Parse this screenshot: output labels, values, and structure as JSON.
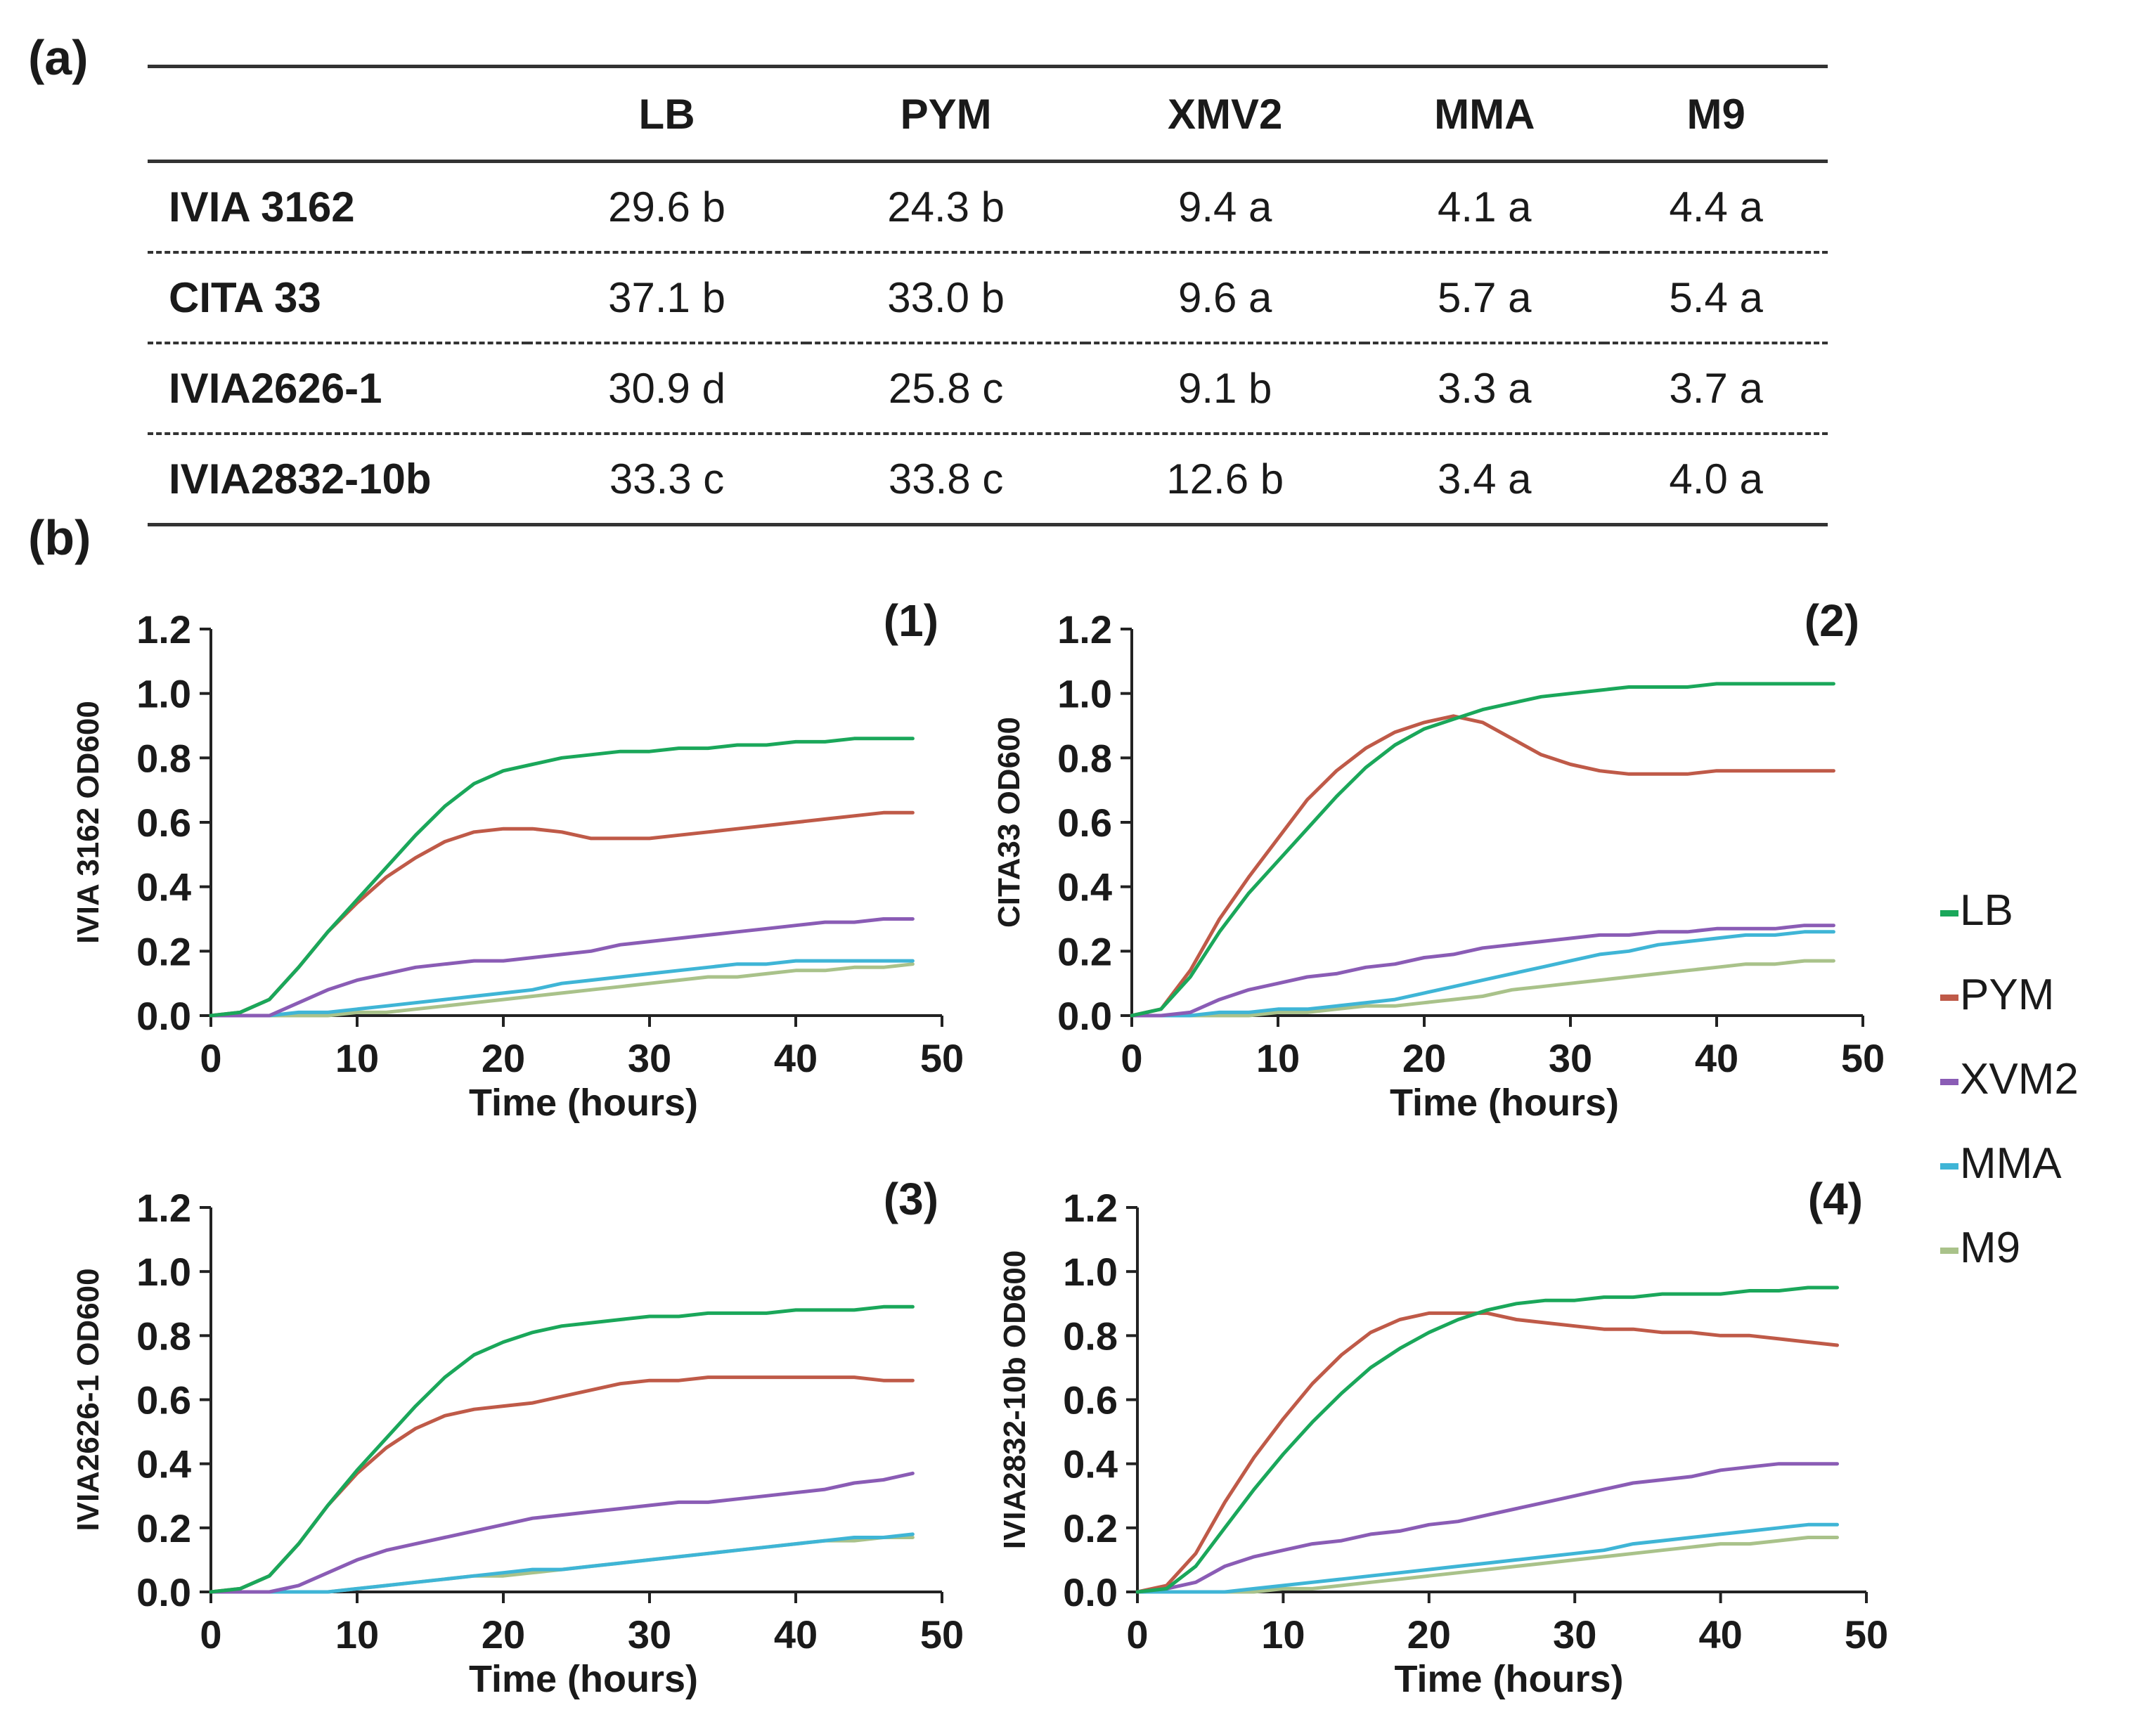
{
  "panel_a_label": "(a)",
  "panel_b_label": "(b)",
  "table": {
    "columns": [
      "LB",
      "PYM",
      "XMV2",
      "MMA",
      "M9"
    ],
    "rows": [
      {
        "strain": "IVIA 3162",
        "values": [
          "29.6 b",
          "24.3 b",
          "9.4 a",
          "4.1 a",
          "4.4 a"
        ]
      },
      {
        "strain": "CITA 33",
        "values": [
          "37.1 b",
          "33.0 b",
          "9.6 a",
          "5.7 a",
          "5.4 a"
        ]
      },
      {
        "strain": "IVIA2626-1",
        "values": [
          "30.9 d",
          "25.8 c",
          "9.1 b",
          "3.3 a",
          "3.7 a"
        ]
      },
      {
        "strain": "IVIA2832-10b",
        "values": [
          "33.3 c",
          "33.8 c",
          "12.6 b",
          "3.4 a",
          "4.0 a"
        ]
      }
    ]
  },
  "legend": [
    {
      "label": "LB",
      "color": "#1aa75a"
    },
    {
      "label": "PYM",
      "color": "#bf5a48"
    },
    {
      "label": "XVM2",
      "color": "#8a5cb5"
    },
    {
      "label": "MMA",
      "color": "#3fb5d6"
    },
    {
      "label": "M9",
      "color": "#a9c28a"
    }
  ],
  "chart_data": [
    {
      "type": "line",
      "panel": "(1)",
      "xlabel": "Time (hours)",
      "ylabel": "IVIA 3162 OD600",
      "xlim": [
        0,
        50
      ],
      "ylim": [
        0,
        1.2
      ],
      "xticks": [
        "0",
        "10",
        "20",
        "30",
        "40",
        "50"
      ],
      "yticks": [
        "0.0",
        "0.2",
        "0.4",
        "0.6",
        "0.8",
        "1.0",
        "1.2"
      ],
      "x": [
        0,
        2,
        4,
        6,
        8,
        10,
        12,
        14,
        16,
        18,
        20,
        22,
        24,
        26,
        28,
        30,
        32,
        34,
        36,
        38,
        40,
        42,
        44,
        46,
        48
      ],
      "series": [
        {
          "name": "LB",
          "values": [
            0,
            0.01,
            0.05,
            0.15,
            0.26,
            0.36,
            0.46,
            0.56,
            0.65,
            0.72,
            0.76,
            0.78,
            0.8,
            0.81,
            0.82,
            0.82,
            0.83,
            0.83,
            0.84,
            0.84,
            0.85,
            0.85,
            0.86,
            0.86,
            0.86
          ]
        },
        {
          "name": "PYM",
          "values": [
            0,
            0.01,
            0.05,
            0.15,
            0.26,
            0.35,
            0.43,
            0.49,
            0.54,
            0.57,
            0.58,
            0.58,
            0.57,
            0.55,
            0.55,
            0.55,
            0.56,
            0.57,
            0.58,
            0.59,
            0.6,
            0.61,
            0.62,
            0.63,
            0.63
          ]
        },
        {
          "name": "XVM2",
          "values": [
            0,
            0,
            0,
            0.04,
            0.08,
            0.11,
            0.13,
            0.15,
            0.16,
            0.17,
            0.17,
            0.18,
            0.19,
            0.2,
            0.22,
            0.23,
            0.24,
            0.25,
            0.26,
            0.27,
            0.28,
            0.29,
            0.29,
            0.3,
            0.3
          ]
        },
        {
          "name": "MMA",
          "values": [
            0,
            0,
            0,
            0.01,
            0.01,
            0.02,
            0.03,
            0.04,
            0.05,
            0.06,
            0.07,
            0.08,
            0.1,
            0.11,
            0.12,
            0.13,
            0.14,
            0.15,
            0.16,
            0.16,
            0.17,
            0.17,
            0.17,
            0.17,
            0.17
          ]
        },
        {
          "name": "M9",
          "values": [
            0,
            0,
            0,
            0,
            0,
            0.01,
            0.01,
            0.02,
            0.03,
            0.04,
            0.05,
            0.06,
            0.07,
            0.08,
            0.09,
            0.1,
            0.11,
            0.12,
            0.12,
            0.13,
            0.14,
            0.14,
            0.15,
            0.15,
            0.16
          ]
        }
      ]
    },
    {
      "type": "line",
      "panel": "(2)",
      "xlabel": "Time (hours)",
      "ylabel": "CITA33 OD600",
      "xlim": [
        0,
        50
      ],
      "ylim": [
        0,
        1.2
      ],
      "xticks": [
        "0",
        "10",
        "20",
        "30",
        "40",
        "50"
      ],
      "yticks": [
        "0.0",
        "0.2",
        "0.4",
        "0.6",
        "0.8",
        "1.0",
        "1.2"
      ],
      "x": [
        0,
        2,
        4,
        6,
        8,
        10,
        12,
        14,
        16,
        18,
        20,
        22,
        24,
        26,
        28,
        30,
        32,
        34,
        36,
        38,
        40,
        42,
        44,
        46,
        48
      ],
      "series": [
        {
          "name": "LB",
          "values": [
            0,
            0.02,
            0.12,
            0.26,
            0.38,
            0.48,
            0.58,
            0.68,
            0.77,
            0.84,
            0.89,
            0.92,
            0.95,
            0.97,
            0.99,
            1.0,
            1.01,
            1.02,
            1.02,
            1.02,
            1.03,
            1.03,
            1.03,
            1.03,
            1.03
          ]
        },
        {
          "name": "PYM",
          "values": [
            0,
            0.02,
            0.14,
            0.3,
            0.43,
            0.55,
            0.67,
            0.76,
            0.83,
            0.88,
            0.91,
            0.93,
            0.91,
            0.86,
            0.81,
            0.78,
            0.76,
            0.75,
            0.75,
            0.75,
            0.76,
            0.76,
            0.76,
            0.76,
            0.76
          ]
        },
        {
          "name": "XVM2",
          "values": [
            0,
            0,
            0.01,
            0.05,
            0.08,
            0.1,
            0.12,
            0.13,
            0.15,
            0.16,
            0.18,
            0.19,
            0.21,
            0.22,
            0.23,
            0.24,
            0.25,
            0.25,
            0.26,
            0.26,
            0.27,
            0.27,
            0.27,
            0.28,
            0.28
          ]
        },
        {
          "name": "MMA",
          "values": [
            0,
            0,
            0,
            0.01,
            0.01,
            0.02,
            0.02,
            0.03,
            0.04,
            0.05,
            0.07,
            0.09,
            0.11,
            0.13,
            0.15,
            0.17,
            0.19,
            0.2,
            0.22,
            0.23,
            0.24,
            0.25,
            0.25,
            0.26,
            0.26
          ]
        },
        {
          "name": "M9",
          "values": [
            0,
            0,
            0,
            0,
            0,
            0.01,
            0.01,
            0.02,
            0.03,
            0.03,
            0.04,
            0.05,
            0.06,
            0.08,
            0.09,
            0.1,
            0.11,
            0.12,
            0.13,
            0.14,
            0.15,
            0.16,
            0.16,
            0.17,
            0.17
          ]
        }
      ]
    },
    {
      "type": "line",
      "panel": "(3)",
      "xlabel": "Time (hours)",
      "ylabel": "IVIA2626-1 OD600",
      "xlim": [
        0,
        50
      ],
      "ylim": [
        0,
        1.2
      ],
      "xticks": [
        "0",
        "10",
        "20",
        "30",
        "40",
        "50"
      ],
      "yticks": [
        "0.0",
        "0.2",
        "0.4",
        "0.6",
        "0.8",
        "1.0",
        "1.2"
      ],
      "x": [
        0,
        2,
        4,
        6,
        8,
        10,
        12,
        14,
        16,
        18,
        20,
        22,
        24,
        26,
        28,
        30,
        32,
        34,
        36,
        38,
        40,
        42,
        44,
        46,
        48
      ],
      "series": [
        {
          "name": "LB",
          "values": [
            0,
            0.01,
            0.05,
            0.15,
            0.27,
            0.38,
            0.48,
            0.58,
            0.67,
            0.74,
            0.78,
            0.81,
            0.83,
            0.84,
            0.85,
            0.86,
            0.86,
            0.87,
            0.87,
            0.87,
            0.88,
            0.88,
            0.88,
            0.89,
            0.89
          ]
        },
        {
          "name": "PYM",
          "values": [
            0,
            0.01,
            0.05,
            0.15,
            0.27,
            0.37,
            0.45,
            0.51,
            0.55,
            0.57,
            0.58,
            0.59,
            0.61,
            0.63,
            0.65,
            0.66,
            0.66,
            0.67,
            0.67,
            0.67,
            0.67,
            0.67,
            0.67,
            0.66,
            0.66
          ]
        },
        {
          "name": "XVM2",
          "values": [
            0,
            0,
            0,
            0.02,
            0.06,
            0.1,
            0.13,
            0.15,
            0.17,
            0.19,
            0.21,
            0.23,
            0.24,
            0.25,
            0.26,
            0.27,
            0.28,
            0.28,
            0.29,
            0.3,
            0.31,
            0.32,
            0.34,
            0.35,
            0.37
          ]
        },
        {
          "name": "MMA",
          "values": [
            0,
            0,
            0,
            0,
            0,
            0.01,
            0.02,
            0.03,
            0.04,
            0.05,
            0.06,
            0.07,
            0.07,
            0.08,
            0.09,
            0.1,
            0.11,
            0.12,
            0.13,
            0.14,
            0.15,
            0.16,
            0.17,
            0.17,
            0.18
          ]
        },
        {
          "name": "M9",
          "values": [
            0,
            0,
            0,
            0,
            0,
            0.01,
            0.02,
            0.03,
            0.04,
            0.05,
            0.05,
            0.06,
            0.07,
            0.08,
            0.09,
            0.1,
            0.11,
            0.12,
            0.13,
            0.14,
            0.15,
            0.16,
            0.16,
            0.17,
            0.17
          ]
        }
      ]
    },
    {
      "type": "line",
      "panel": "(4)",
      "xlabel": "Time (hours)",
      "ylabel": "IVIA2832-10b  OD600",
      "xlim": [
        0,
        50
      ],
      "ylim": [
        0,
        1.2
      ],
      "xticks": [
        "0",
        "10",
        "20",
        "30",
        "40",
        "50"
      ],
      "yticks": [
        "0.0",
        "0.2",
        "0.4",
        "0.6",
        "0.8",
        "1.0",
        "1.2"
      ],
      "x": [
        0,
        2,
        4,
        6,
        8,
        10,
        12,
        14,
        16,
        18,
        20,
        22,
        24,
        26,
        28,
        30,
        32,
        34,
        36,
        38,
        40,
        42,
        44,
        46,
        48
      ],
      "series": [
        {
          "name": "LB",
          "values": [
            0,
            0.01,
            0.08,
            0.2,
            0.32,
            0.43,
            0.53,
            0.62,
            0.7,
            0.76,
            0.81,
            0.85,
            0.88,
            0.9,
            0.91,
            0.91,
            0.92,
            0.92,
            0.93,
            0.93,
            0.93,
            0.94,
            0.94,
            0.95,
            0.95
          ]
        },
        {
          "name": "PYM",
          "values": [
            0,
            0.02,
            0.12,
            0.28,
            0.42,
            0.54,
            0.65,
            0.74,
            0.81,
            0.85,
            0.87,
            0.87,
            0.87,
            0.85,
            0.84,
            0.83,
            0.82,
            0.82,
            0.81,
            0.81,
            0.8,
            0.8,
            0.79,
            0.78,
            0.77
          ]
        },
        {
          "name": "XVM2",
          "values": [
            0,
            0.01,
            0.03,
            0.08,
            0.11,
            0.13,
            0.15,
            0.16,
            0.18,
            0.19,
            0.21,
            0.22,
            0.24,
            0.26,
            0.28,
            0.3,
            0.32,
            0.34,
            0.35,
            0.36,
            0.38,
            0.39,
            0.4,
            0.4,
            0.4
          ]
        },
        {
          "name": "MMA",
          "values": [
            0,
            0,
            0,
            0,
            0.01,
            0.02,
            0.03,
            0.04,
            0.05,
            0.06,
            0.07,
            0.08,
            0.09,
            0.1,
            0.11,
            0.12,
            0.13,
            0.15,
            0.16,
            0.17,
            0.18,
            0.19,
            0.2,
            0.21,
            0.21
          ]
        },
        {
          "name": "M9",
          "values": [
            0,
            0,
            0,
            0,
            0,
            0.01,
            0.01,
            0.02,
            0.03,
            0.04,
            0.05,
            0.06,
            0.07,
            0.08,
            0.09,
            0.1,
            0.11,
            0.12,
            0.13,
            0.14,
            0.15,
            0.15,
            0.16,
            0.17,
            0.17
          ]
        }
      ]
    }
  ]
}
